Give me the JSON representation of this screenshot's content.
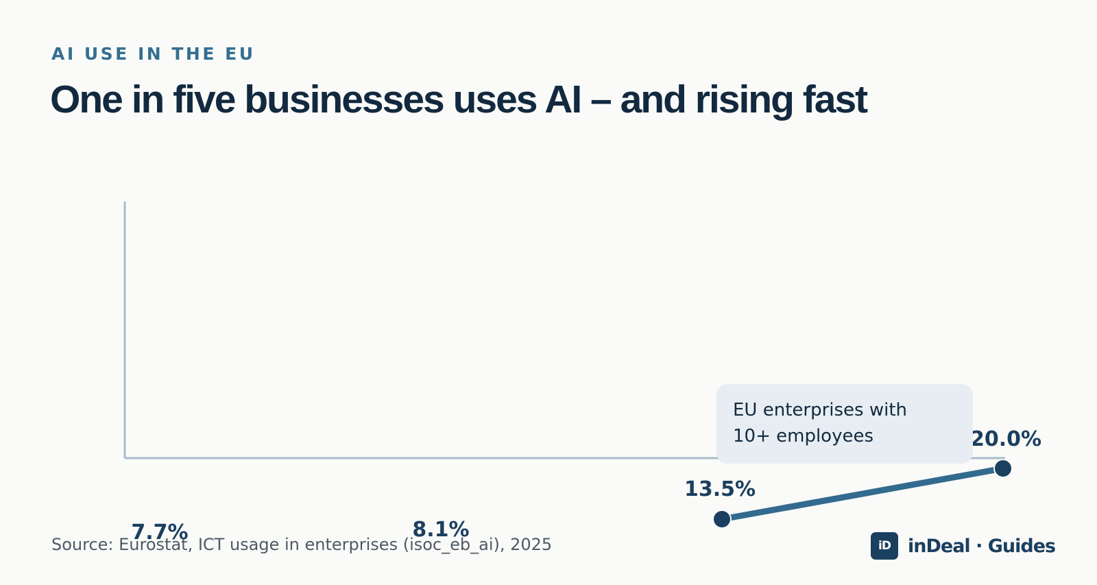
{
  "header": {
    "eyebrow": "AI USE IN THE EU",
    "title": "One in five businesses uses AI – and rising fast"
  },
  "chart_data": {
    "type": "line",
    "title": "One in five businesses uses AI – and rising fast",
    "xlabel": "",
    "ylabel": "",
    "x": [
      0,
      1,
      2,
      3
    ],
    "series": [
      {
        "values": [
          7.7,
          8.1,
          13.5,
          20.0
        ],
        "labels": [
          "7.7%",
          "8.1%",
          "13.5%",
          "20.0%"
        ],
        "visible": [
          false,
          false,
          true,
          true
        ]
      }
    ],
    "ylim": [
      5,
      20.7
    ],
    "grid": false,
    "legend": "none",
    "colors": {
      "line": "#336b8f",
      "marker": "#1a3f5f",
      "axis": "#a8bccb",
      "label": "#1a3f5f"
    }
  },
  "callout": {
    "line1": "EU enterprises with",
    "line2": "10+ employees"
  },
  "footer": {
    "source": "Source: Eurostat, ICT usage in enterprises (isoc_eb_ai), 2025",
    "brand_logo": "iD",
    "brand_name": "inDeal · Guides"
  }
}
